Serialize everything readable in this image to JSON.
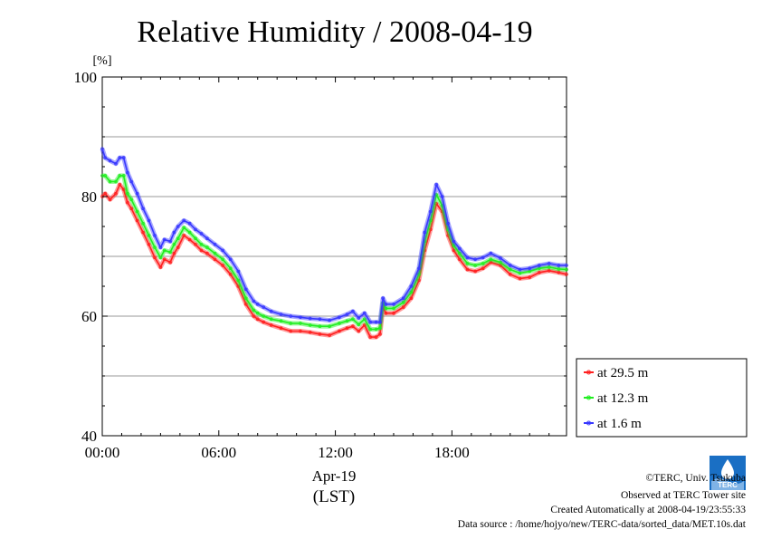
{
  "chart_data": {
    "type": "line",
    "title": "Relative Humidity / 2008-04-19",
    "ylabel": "[%]",
    "xlabel": "(LST)",
    "date_label": "Apr-19",
    "ylim": [
      40,
      100
    ],
    "xlim": [
      0,
      23.9
    ],
    "x_ticks": [
      {
        "value": 0,
        "label": "00:00"
      },
      {
        "value": 6,
        "label": "06:00"
      },
      {
        "value": 12,
        "label": "12:00"
      },
      {
        "value": 18,
        "label": "18:00"
      }
    ],
    "y_ticks": [
      {
        "value": 40,
        "label": "40"
      },
      {
        "value": 60,
        "label": "60"
      },
      {
        "value": 80,
        "label": "80"
      },
      {
        "value": 100,
        "label": "100"
      }
    ],
    "grid_y": [
      50,
      60,
      70,
      80,
      90
    ],
    "grid": true,
    "legend_position": "lower-right, outside plot",
    "series": [
      {
        "name": "at 29.5 m",
        "color": "#ff2020",
        "x": [
          0,
          0.15,
          0.4,
          0.7,
          0.9,
          1.1,
          1.3,
          1.5,
          1.8,
          2.1,
          2.4,
          2.7,
          3.0,
          3.2,
          3.5,
          3.7,
          3.9,
          4.2,
          4.5,
          4.8,
          5.1,
          5.4,
          5.8,
          6.2,
          6.6,
          7.0,
          7.4,
          7.8,
          8.0,
          8.3,
          8.7,
          9.2,
          9.7,
          10.2,
          10.7,
          11.2,
          11.7,
          12.2,
          12.6,
          12.9,
          13.2,
          13.5,
          13.8,
          14.1,
          14.3,
          14.45,
          14.6,
          15.0,
          15.5,
          15.9,
          16.3,
          16.6,
          16.9,
          17.2,
          17.5,
          17.8,
          18.1,
          18.4,
          18.8,
          19.2,
          19.6,
          20.0,
          20.5,
          21.0,
          21.5,
          22.0,
          22.5,
          23.0,
          23.5,
          23.9
        ],
        "values": [
          80.0,
          80.5,
          79.5,
          80.5,
          82.0,
          81.2,
          79.0,
          78.0,
          76.0,
          74.0,
          72.0,
          69.8,
          68.2,
          69.5,
          69.0,
          70.5,
          71.5,
          73.5,
          72.8,
          72.0,
          71.0,
          70.5,
          69.5,
          68.5,
          67.0,
          65.0,
          62.0,
          60.0,
          59.5,
          59.0,
          58.5,
          58.0,
          57.5,
          57.5,
          57.3,
          57.0,
          56.8,
          57.5,
          58.0,
          58.3,
          57.5,
          58.5,
          56.5,
          56.5,
          57.0,
          61.5,
          60.5,
          60.5,
          61.5,
          63.0,
          66.0,
          71.0,
          74.5,
          78.8,
          77.5,
          73.5,
          71.0,
          69.5,
          67.8,
          67.5,
          68.0,
          69.0,
          68.5,
          67.0,
          66.3,
          66.5,
          67.3,
          67.6,
          67.3,
          67.0
        ]
      },
      {
        "name": "at 12.3 m",
        "color": "#20ee20",
        "x": [
          0,
          0.15,
          0.4,
          0.7,
          0.9,
          1.1,
          1.3,
          1.5,
          1.8,
          2.1,
          2.4,
          2.7,
          3.0,
          3.2,
          3.5,
          3.7,
          3.9,
          4.2,
          4.5,
          4.8,
          5.1,
          5.4,
          5.8,
          6.2,
          6.6,
          7.0,
          7.4,
          7.8,
          8.0,
          8.3,
          8.7,
          9.2,
          9.7,
          10.2,
          10.7,
          11.2,
          11.7,
          12.2,
          12.6,
          12.9,
          13.2,
          13.5,
          13.8,
          14.1,
          14.3,
          14.45,
          14.6,
          15.0,
          15.5,
          15.9,
          16.3,
          16.6,
          16.9,
          17.2,
          17.5,
          17.8,
          18.1,
          18.4,
          18.8,
          19.2,
          19.6,
          20.0,
          20.5,
          21.0,
          21.5,
          22.0,
          22.5,
          23.0,
          23.5,
          23.9
        ],
        "values": [
          83.5,
          83.5,
          82.5,
          82.5,
          83.5,
          83.5,
          80.5,
          79.5,
          77.5,
          75.5,
          73.5,
          71.5,
          69.8,
          71.0,
          70.7,
          72.0,
          73.0,
          74.8,
          74.0,
          73.0,
          72.0,
          71.5,
          70.5,
          69.5,
          68.0,
          66.0,
          63.0,
          61.0,
          60.5,
          60.0,
          59.5,
          59.2,
          58.8,
          58.8,
          58.5,
          58.3,
          58.3,
          58.8,
          59.2,
          59.5,
          58.6,
          59.5,
          57.8,
          57.8,
          58.0,
          62.2,
          61.3,
          61.3,
          62.3,
          64.0,
          67.0,
          72.5,
          76.0,
          80.3,
          78.5,
          74.5,
          71.8,
          70.5,
          68.8,
          68.5,
          68.8,
          69.5,
          69.0,
          67.8,
          67.2,
          67.5,
          68.0,
          68.2,
          67.9,
          67.8
        ]
      },
      {
        "name": "at 1.6 m",
        "color": "#3838ff",
        "x": [
          0,
          0.15,
          0.4,
          0.7,
          0.9,
          1.1,
          1.3,
          1.5,
          1.8,
          2.1,
          2.4,
          2.7,
          3.0,
          3.2,
          3.5,
          3.7,
          3.9,
          4.2,
          4.5,
          4.8,
          5.1,
          5.4,
          5.8,
          6.2,
          6.6,
          7.0,
          7.4,
          7.8,
          8.0,
          8.3,
          8.7,
          9.2,
          9.7,
          10.2,
          10.7,
          11.2,
          11.7,
          12.2,
          12.6,
          12.9,
          13.2,
          13.5,
          13.8,
          14.1,
          14.3,
          14.45,
          14.6,
          15.0,
          15.5,
          15.9,
          16.3,
          16.6,
          16.9,
          17.2,
          17.5,
          17.8,
          18.1,
          18.4,
          18.8,
          19.2,
          19.6,
          20.0,
          20.5,
          21.0,
          21.5,
          22.0,
          22.5,
          23.0,
          23.5,
          23.9
        ],
        "values": [
          88.0,
          86.5,
          86.0,
          85.5,
          86.5,
          86.5,
          84.0,
          82.5,
          80.5,
          78.0,
          76.0,
          73.5,
          71.5,
          72.8,
          72.5,
          74.0,
          75.0,
          76.0,
          75.5,
          74.5,
          73.8,
          73.0,
          72.0,
          71.0,
          69.5,
          67.5,
          64.5,
          62.5,
          62.0,
          61.5,
          60.8,
          60.3,
          60.0,
          59.8,
          59.6,
          59.5,
          59.3,
          59.8,
          60.3,
          60.8,
          59.7,
          60.5,
          59.0,
          59.0,
          59.0,
          63.0,
          62.0,
          62.0,
          63.0,
          65.0,
          68.0,
          74.0,
          77.5,
          82.0,
          80.0,
          75.5,
          72.5,
          71.3,
          69.8,
          69.5,
          69.8,
          70.5,
          69.7,
          68.5,
          67.8,
          68.0,
          68.5,
          68.8,
          68.5,
          68.5
        ]
      }
    ]
  },
  "credits": {
    "line1": "©TERC, Univ. Tsukuba",
    "line2": "Observed at TERC Tower site",
    "line3": "Created Automatically at 2008-04-19/23:55:33",
    "line4": "Data source : /home/hojyo/new/TERC-data/sorted_data/MET.10s.dat"
  },
  "logo": {
    "text": "TERC",
    "colors": {
      "primary": "#1a6fc4",
      "light": "#7fb3e6"
    }
  }
}
